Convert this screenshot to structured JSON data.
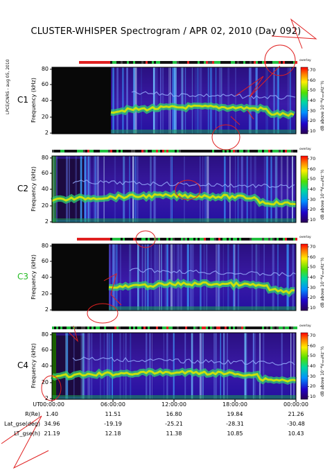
{
  "title": "CLUSTER-WHISPER Spectrogram / APR 02, 2010 (Day 092)",
  "side_info": "LPCE/CNRS - aug 05, 2010",
  "panels": [
    {
      "name": "C1",
      "color": "#000000"
    },
    {
      "name": "C2",
      "color": "#000000"
    },
    {
      "name": "C3",
      "color": "#22bb22"
    },
    {
      "name": "C4",
      "color": "#000000"
    }
  ],
  "y_axis_label": "Frequency (kHz)",
  "y_ticks": [
    "80",
    "60",
    "40",
    "20",
    "2"
  ],
  "colorbar": {
    "label": "dB above 10⁻⁸Vₘₑ₄Hz⁻½",
    "ticks": [
      "70",
      "60",
      "50",
      "40",
      "30",
      "20",
      "10"
    ],
    "title": "overlay"
  },
  "ephemeris": {
    "labels": [
      "UT",
      "R(Re)",
      "Lat_gse(deg)",
      "LT_gse(h)"
    ],
    "columns": [
      {
        "UT": "00:00:00",
        "R": "1.40",
        "Lat": "34.96",
        "LT": "21.19"
      },
      {
        "UT": "06:00:00",
        "R": "11.51",
        "Lat": "-19.19",
        "LT": "12.18"
      },
      {
        "UT": "12:00:00",
        "R": "16.80",
        "Lat": "-25.21",
        "LT": "11.38"
      },
      {
        "UT": "18:00:00",
        "R": "19.84",
        "Lat": "-28.31",
        "LT": "10.85"
      },
      {
        "UT": "00:00:00",
        "R": "21.26",
        "Lat": "-30.48",
        "LT": "10.43"
      }
    ]
  },
  "chart_data": {
    "type": "heatmap",
    "title": "CLUSTER-WHISPER Spectrogram / APR 02, 2010 (Day 092)",
    "xlabel": "UT",
    "ylabel": "Frequency (kHz)",
    "x_ticks": [
      "00:00:00",
      "06:00:00",
      "12:00:00",
      "18:00:00",
      "00:00:00"
    ],
    "ylim": [
      2,
      80
    ],
    "colorbar_range": [
      10,
      70
    ],
    "series": [
      {
        "name": "C1"
      },
      {
        "name": "C2"
      },
      {
        "name": "C3"
      },
      {
        "name": "C4"
      }
    ]
  }
}
